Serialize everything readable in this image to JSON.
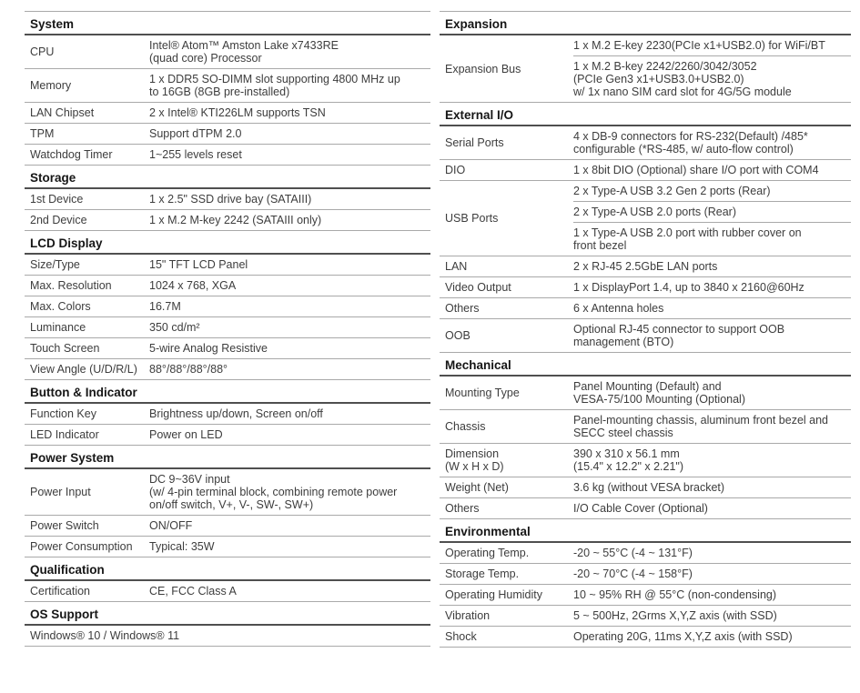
{
  "colors": {
    "background": "#ffffff",
    "body_text": "#3d3d3d",
    "heading_text": "#161616",
    "row_line": "#a9a9a9",
    "heading_line": "#4f4f4f"
  },
  "columns": [
    {
      "side": "left",
      "sections": [
        {
          "title": "System",
          "rows": [
            {
              "label": "CPU",
              "cells": [
                "Intel® Atom™ Amston Lake x7433RE\n(quad core) Processor"
              ]
            },
            {
              "label": "Memory",
              "cells": [
                "1 x DDR5 SO-DIMM slot supporting 4800 MHz up\nto 16GB (8GB pre-installed)"
              ]
            },
            {
              "label": "LAN Chipset",
              "cells": [
                "2 x Intel® KTI226LM supports TSN"
              ]
            },
            {
              "label": "TPM",
              "cells": [
                "Support dTPM 2.0"
              ]
            },
            {
              "label": "Watchdog Timer",
              "cells": [
                "1~255 levels reset"
              ]
            }
          ]
        },
        {
          "title": "Storage",
          "rows": [
            {
              "label": "1st Device",
              "cells": [
                "1 x 2.5\" SSD drive bay (SATAIII)"
              ]
            },
            {
              "label": "2nd Device",
              "cells": [
                "1 x M.2 M-key 2242 (SATAIII only)"
              ]
            }
          ]
        },
        {
          "title": "LCD Display",
          "rows": [
            {
              "label": "Size/Type",
              "cells": [
                "15\" TFT LCD Panel"
              ]
            },
            {
              "label": "Max. Resolution",
              "cells": [
                "1024 x 768, XGA"
              ]
            },
            {
              "label": "Max. Colors",
              "cells": [
                "16.7M"
              ]
            },
            {
              "label": "Luminance",
              "cells": [
                "350 cd/m²"
              ]
            },
            {
              "label": "Touch Screen",
              "cells": [
                "5-wire Analog Resistive"
              ]
            },
            {
              "label": "View Angle (U/D/R/L)",
              "cells": [
                "88°/88°/88°/88°"
              ]
            }
          ]
        },
        {
          "title": "Button & Indicator",
          "rows": [
            {
              "label": "Function Key",
              "cells": [
                "Brightness up/down, Screen on/off"
              ]
            },
            {
              "label": "LED Indicator",
              "cells": [
                "Power on LED"
              ]
            }
          ]
        },
        {
          "title": "Power System",
          "rows": [
            {
              "label": "Power Input",
              "cells": [
                "DC 9~36V input\n(w/ 4-pin terminal block, combining remote power\non/off switch, V+, V-, SW-, SW+)"
              ]
            },
            {
              "label": "Power Switch",
              "cells": [
                "ON/OFF"
              ]
            },
            {
              "label": "Power Consumption",
              "cells": [
                "Typical: 35W"
              ]
            }
          ]
        },
        {
          "title": "Qualification",
          "rows": [
            {
              "label": "Certification",
              "cells": [
                "CE, FCC Class A"
              ]
            }
          ]
        },
        {
          "title": "OS Support",
          "rows": [
            {
              "label": null,
              "cells": [
                "Windows® 10 / Windows® 11"
              ]
            }
          ]
        }
      ]
    },
    {
      "side": "right",
      "sections": [
        {
          "title": "Expansion",
          "rows": [
            {
              "label": "Expansion Bus",
              "cells": [
                "1 x M.2 E-key 2230(PCIe x1+USB2.0) for WiFi/BT",
                "1 x M.2 B-key 2242/2260/3042/3052\n(PCIe Gen3 x1+USB3.0+USB2.0)\nw/ 1x nano SIM card slot for 4G/5G module"
              ]
            }
          ]
        },
        {
          "title": "External I/O",
          "rows": [
            {
              "label": "Serial Ports",
              "cells": [
                "4 x DB-9 connectors for RS-232(Default) /485*\nconfigurable (*RS-485, w/ auto-flow control)"
              ]
            },
            {
              "label": "DIO",
              "cells": [
                "1 x 8bit DIO (Optional) share I/O port with COM4"
              ]
            },
            {
              "label": "USB Ports",
              "cells": [
                "2 x Type-A USB 3.2 Gen 2 ports (Rear)",
                "2 x Type-A USB 2.0 ports (Rear)",
                "1 x Type-A USB 2.0 port with rubber cover on\nfront bezel"
              ]
            },
            {
              "label": "LAN",
              "cells": [
                "2 x RJ-45 2.5GbE LAN ports"
              ]
            },
            {
              "label": "Video Output",
              "cells": [
                "1 x DisplayPort 1.4, up to 3840 x 2160@60Hz"
              ]
            },
            {
              "label": "Others",
              "cells": [
                "6 x Antenna holes"
              ]
            },
            {
              "label": "OOB",
              "cells": [
                "Optional RJ-45 connector to support OOB\nmanagement (BTO)"
              ]
            }
          ]
        },
        {
          "title": "Mechanical",
          "rows": [
            {
              "label": "Mounting Type",
              "cells": [
                "Panel Mounting (Default) and\nVESA-75/100 Mounting (Optional)"
              ]
            },
            {
              "label": "Chassis",
              "cells": [
                "Panel-mounting chassis, aluminum front bezel and\nSECC steel chassis"
              ]
            },
            {
              "label": "Dimension\n(W x H x D)",
              "cells": [
                "390 x 310 x 56.1 mm\n(15.4\" x 12.2\" x 2.21\")"
              ]
            },
            {
              "label": "Weight (Net)",
              "cells": [
                "3.6 kg (without VESA bracket)"
              ]
            },
            {
              "label": "Others",
              "cells": [
                "I/O Cable Cover (Optional)"
              ]
            }
          ]
        },
        {
          "title": "Environmental",
          "rows": [
            {
              "label": "Operating Temp.",
              "cells": [
                "-20 ~ 55°C (-4 ~ 131°F)"
              ]
            },
            {
              "label": "Storage Temp.",
              "cells": [
                "-20 ~ 70°C (-4 ~ 158°F)"
              ]
            },
            {
              "label": "Operating Humidity",
              "cells": [
                "10 ~ 95% RH @ 55°C (non-condensing)"
              ]
            },
            {
              "label": "Vibration",
              "cells": [
                "5 ~ 500Hz, 2Grms X,Y,Z axis (with SSD)"
              ]
            },
            {
              "label": "Shock",
              "cells": [
                "Operating 20G, 11ms X,Y,Z axis (with SSD)"
              ]
            }
          ]
        }
      ]
    }
  ]
}
